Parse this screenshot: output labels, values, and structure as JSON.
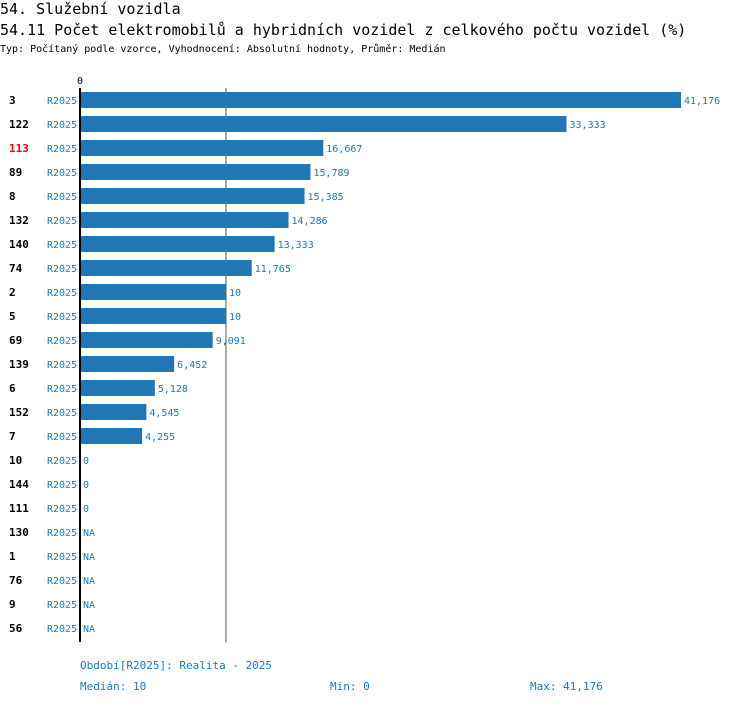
{
  "section_title": "54. Služební vozidla",
  "indicator_title": "54.11 Počet elektromobilů a hybridních vozidel z celkového počtu vozidel (%)",
  "subtitle": "Typ: Počítaný podle vzorce, Vyhodnocení: Absolutní hodnoty, Průměr: Medián",
  "chart_data": {
    "type": "bar",
    "orientation": "horizontal",
    "axis_zero_label": "0",
    "xlim": [
      0,
      41.176
    ],
    "median_line": 10,
    "series_label": "R2025",
    "bar_color": "#1f77b4",
    "highlight_color": "#ff0000",
    "highlight_id": "113",
    "rows": [
      {
        "id": "3",
        "value": 41.176,
        "label": "41,176"
      },
      {
        "id": "122",
        "value": 33.333,
        "label": "33,333"
      },
      {
        "id": "113",
        "value": 16.667,
        "label": "16,667"
      },
      {
        "id": "89",
        "value": 15.789,
        "label": "15,789"
      },
      {
        "id": "8",
        "value": 15.385,
        "label": "15,385"
      },
      {
        "id": "132",
        "value": 14.286,
        "label": "14,286"
      },
      {
        "id": "140",
        "value": 13.333,
        "label": "13,333"
      },
      {
        "id": "74",
        "value": 11.765,
        "label": "11,765"
      },
      {
        "id": "2",
        "value": 10,
        "label": "10"
      },
      {
        "id": "5",
        "value": 10,
        "label": "10"
      },
      {
        "id": "69",
        "value": 9.091,
        "label": "9,091"
      },
      {
        "id": "139",
        "value": 6.452,
        "label": "6,452"
      },
      {
        "id": "6",
        "value": 5.128,
        "label": "5,128"
      },
      {
        "id": "152",
        "value": 4.545,
        "label": "4,545"
      },
      {
        "id": "7",
        "value": 4.255,
        "label": "4,255"
      },
      {
        "id": "10",
        "value": 0,
        "label": "0"
      },
      {
        "id": "144",
        "value": 0,
        "label": "0"
      },
      {
        "id": "111",
        "value": 0,
        "label": "0"
      },
      {
        "id": "130",
        "value": null,
        "label": "NA"
      },
      {
        "id": "1",
        "value": null,
        "label": "NA"
      },
      {
        "id": "76",
        "value": null,
        "label": "NA"
      },
      {
        "id": "9",
        "value": null,
        "label": "NA"
      },
      {
        "id": "56",
        "value": null,
        "label": "NA"
      }
    ]
  },
  "footer": {
    "period": "Období[R2025]: Realita - 2025",
    "median": "Medián: 10",
    "min": "Min: 0",
    "max": "Max: 41,176"
  }
}
